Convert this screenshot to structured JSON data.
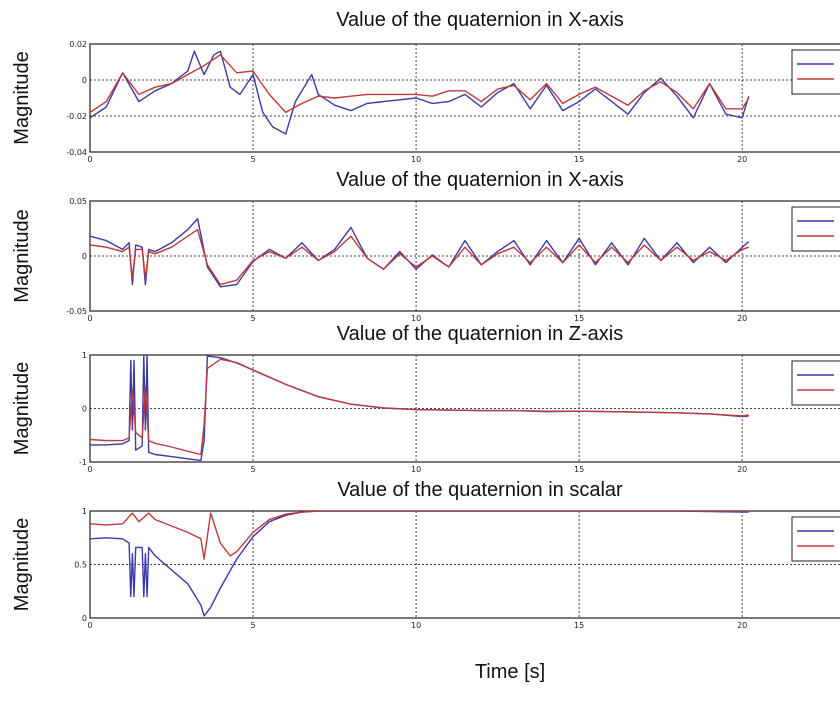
{
  "figure": {
    "xlabel": "Time [s]"
  },
  "chart_data": [
    {
      "type": "line",
      "title": "Value of the quaternion in X-axis",
      "ylabel": "Magnitude",
      "xlim": [
        0,
        23
      ],
      "ylim": [
        -0.04,
        0.02
      ],
      "x_ticks": [
        0,
        5,
        10,
        15,
        20
      ],
      "y_ticks": [
        -0.04,
        -0.02,
        0,
        0.02
      ],
      "y_tick_labels": [
        "-0.04",
        "-0.02",
        "0",
        "0.02"
      ],
      "grid": true,
      "legend": "right",
      "series": [
        {
          "color": "#3a3aa8",
          "x": [
            0,
            0.5,
            1,
            1.5,
            2,
            2.5,
            3,
            3.2,
            3.5,
            3.8,
            4,
            4.3,
            4.6,
            5,
            5.3,
            5.6,
            6,
            6.3,
            6.8,
            7,
            7.5,
            8,
            8.5,
            9,
            9.5,
            10,
            10.5,
            11,
            11.5,
            12,
            12.5,
            13,
            13.5,
            14,
            14.5,
            15,
            15.5,
            16,
            16.5,
            17,
            17.5,
            18,
            18.5,
            19,
            19.5,
            20,
            20.2
          ],
          "y": [
            -0.021,
            -0.015,
            0.004,
            -0.012,
            -0.006,
            -0.002,
            0.005,
            0.016,
            0.003,
            0.014,
            0.016,
            -0.004,
            -0.008,
            0.003,
            -0.018,
            -0.026,
            -0.03,
            -0.012,
            0.003,
            -0.008,
            -0.014,
            -0.017,
            -0.013,
            -0.012,
            -0.011,
            -0.01,
            -0.013,
            -0.012,
            -0.008,
            -0.015,
            -0.007,
            -0.002,
            -0.016,
            -0.003,
            -0.017,
            -0.012,
            -0.005,
            -0.012,
            -0.019,
            -0.007,
            0.001,
            -0.009,
            -0.021,
            -0.002,
            -0.019,
            -0.021,
            -0.009
          ]
        },
        {
          "color": "#c0393b",
          "x": [
            0,
            0.5,
            1,
            1.5,
            2,
            2.5,
            3,
            3.5,
            4,
            4.5,
            5,
            5.5,
            6,
            6.5,
            7,
            7.5,
            8,
            8.5,
            9,
            9.5,
            10,
            10.5,
            11,
            11.5,
            12,
            12.5,
            13,
            13.5,
            14,
            14.5,
            15,
            15.5,
            16,
            16.5,
            17,
            17.5,
            18,
            18.5,
            19,
            19.5,
            20,
            20.2
          ],
          "y": [
            -0.018,
            -0.012,
            0.004,
            -0.008,
            -0.004,
            -0.002,
            0.003,
            0.008,
            0.014,
            0.004,
            0.005,
            -0.008,
            -0.018,
            -0.013,
            -0.009,
            -0.01,
            -0.009,
            -0.008,
            -0.008,
            -0.008,
            -0.008,
            -0.009,
            -0.006,
            -0.006,
            -0.012,
            -0.005,
            -0.003,
            -0.011,
            -0.002,
            -0.013,
            -0.008,
            -0.004,
            -0.009,
            -0.014,
            -0.006,
            -0.001,
            -0.007,
            -0.016,
            -0.002,
            -0.016,
            -0.016,
            -0.01
          ]
        }
      ]
    },
    {
      "type": "line",
      "title": "Value of the quaternion in X-axis",
      "ylabel": "Magnitude",
      "xlim": [
        0,
        23
      ],
      "ylim": [
        -0.05,
        0.05
      ],
      "x_ticks": [
        0,
        5,
        10,
        15,
        20
      ],
      "y_ticks": [
        -0.05,
        0,
        0.05
      ],
      "y_tick_labels": [
        "-0.05",
        "0",
        "0.05"
      ],
      "grid": true,
      "legend": "right",
      "series": [
        {
          "color": "#3a3aa8",
          "x": [
            0,
            0.5,
            1,
            1.2,
            1.3,
            1.4,
            1.6,
            1.7,
            1.8,
            2,
            2.5,
            3,
            3.3,
            3.6,
            4,
            4.5,
            5,
            5.5,
            6,
            6.5,
            7,
            7.5,
            8,
            8.5,
            9,
            9.5,
            10,
            10.5,
            11,
            11.5,
            12,
            12.5,
            13,
            13.5,
            14,
            14.5,
            15,
            15.5,
            16,
            16.5,
            17,
            17.5,
            18,
            18.5,
            19,
            19.5,
            20,
            20.2
          ],
          "y": [
            0.018,
            0.014,
            0.006,
            0.012,
            -0.026,
            0.01,
            0.008,
            -0.026,
            0.006,
            0.004,
            0.012,
            0.024,
            0.034,
            -0.01,
            -0.028,
            -0.026,
            -0.005,
            0.006,
            -0.002,
            0.012,
            -0.004,
            0.006,
            0.026,
            -0.002,
            -0.012,
            0.004,
            -0.012,
            0.001,
            -0.01,
            0.014,
            -0.008,
            0.004,
            0.014,
            -0.008,
            0.014,
            -0.006,
            0.016,
            -0.008,
            0.012,
            -0.008,
            0.016,
            -0.004,
            0.012,
            -0.006,
            0.008,
            -0.006,
            0.008,
            0.013
          ]
        },
        {
          "color": "#c0393b",
          "x": [
            0,
            0.5,
            1,
            1.2,
            1.3,
            1.4,
            1.6,
            1.7,
            1.8,
            2,
            2.5,
            3,
            3.3,
            3.6,
            4,
            4.5,
            5,
            5.5,
            6,
            6.5,
            7,
            7.5,
            8,
            8.5,
            9,
            9.5,
            10,
            10.5,
            11,
            11.5,
            12,
            12.5,
            13,
            13.5,
            14,
            14.5,
            15,
            15.5,
            16,
            16.5,
            17,
            17.5,
            18,
            18.5,
            19,
            19.5,
            20,
            20.2
          ],
          "y": [
            0.01,
            0.008,
            0.004,
            0.008,
            -0.02,
            0.006,
            0.006,
            -0.02,
            0.004,
            0.002,
            0.008,
            0.018,
            0.024,
            -0.008,
            -0.026,
            -0.022,
            -0.004,
            0.004,
            -0.002,
            0.008,
            -0.004,
            0.004,
            0.018,
            -0.002,
            -0.012,
            0.002,
            -0.01,
            0,
            -0.01,
            0.008,
            -0.008,
            0.002,
            0.008,
            -0.006,
            0.008,
            -0.006,
            0.01,
            -0.006,
            0.008,
            -0.006,
            0.01,
            -0.004,
            0.008,
            -0.004,
            0.004,
            -0.004,
            0.006,
            0.008
          ]
        }
      ]
    },
    {
      "type": "line",
      "title": "Value of the quaternion in Z-axis",
      "ylabel": "Magnitude",
      "xlim": [
        0,
        23
      ],
      "ylim": [
        -1,
        1
      ],
      "x_ticks": [
        0,
        5,
        10,
        15,
        20
      ],
      "y_ticks": [
        -1,
        0,
        1
      ],
      "y_tick_labels": [
        "-1",
        "0",
        "1"
      ],
      "grid": true,
      "legend": "right",
      "series": [
        {
          "color": "#3a3aa8",
          "x": [
            0,
            0.5,
            1,
            1.2,
            1.25,
            1.3,
            1.35,
            1.4,
            1.6,
            1.65,
            1.7,
            1.75,
            1.8,
            2,
            2.5,
            3,
            3.4,
            3.5,
            3.6,
            4,
            4.5,
            5,
            6,
            7,
            8,
            9,
            10,
            11,
            12,
            13,
            14,
            15,
            16,
            17,
            18,
            19,
            20,
            20.2
          ],
          "y": [
            -0.68,
            -0.68,
            -0.66,
            -0.6,
            0.9,
            -0.4,
            0.9,
            -0.78,
            -0.7,
            1,
            -0.4,
            1,
            -0.82,
            -0.86,
            -0.9,
            -0.94,
            -0.97,
            -0.6,
            0.98,
            0.95,
            0.85,
            0.72,
            0.45,
            0.22,
            0.08,
            0.01,
            -0.02,
            -0.03,
            -0.04,
            -0.04,
            -0.06,
            -0.05,
            -0.06,
            -0.07,
            -0.08,
            -0.1,
            -0.15,
            -0.14
          ]
        },
        {
          "color": "#c0393b",
          "x": [
            0,
            0.5,
            1,
            1.2,
            1.3,
            1.4,
            1.6,
            1.7,
            1.8,
            2,
            2.5,
            3,
            3.4,
            3.5,
            3.6,
            4,
            4.5,
            5,
            6,
            7,
            8,
            9,
            10,
            11,
            12,
            13,
            14,
            15,
            16,
            17,
            18,
            19,
            20,
            20.2
          ],
          "y": [
            -0.58,
            -0.6,
            -0.6,
            -0.55,
            0.35,
            -0.45,
            -0.55,
            0.4,
            -0.6,
            -0.65,
            -0.72,
            -0.8,
            -0.86,
            -0.3,
            0.75,
            0.92,
            0.86,
            0.72,
            0.45,
            0.22,
            0.08,
            0.01,
            -0.02,
            -0.03,
            -0.04,
            -0.04,
            -0.05,
            -0.05,
            -0.06,
            -0.07,
            -0.08,
            -0.1,
            -0.14,
            -0.12
          ]
        }
      ]
    },
    {
      "type": "line",
      "title": "Value of the quaternion in scalar",
      "ylabel": "Magnitude",
      "xlim": [
        0,
        23
      ],
      "ylim": [
        0,
        1
      ],
      "x_ticks": [
        0,
        5,
        10,
        15,
        20
      ],
      "y_ticks": [
        0,
        0.5,
        1
      ],
      "y_tick_labels": [
        "0",
        "0.5",
        "1"
      ],
      "grid": true,
      "legend": "right",
      "series": [
        {
          "color": "#3a3aa8",
          "x": [
            0,
            0.5,
            1,
            1.2,
            1.25,
            1.3,
            1.35,
            1.4,
            1.6,
            1.65,
            1.7,
            1.75,
            1.8,
            2,
            2.5,
            3,
            3.4,
            3.5,
            3.7,
            4,
            4.5,
            5,
            5.5,
            6,
            6.5,
            7,
            8,
            10,
            12,
            15,
            18,
            20,
            20.2
          ],
          "y": [
            0.74,
            0.75,
            0.74,
            0.7,
            0.2,
            0.6,
            0.2,
            0.66,
            0.66,
            0.2,
            0.6,
            0.2,
            0.66,
            0.58,
            0.45,
            0.32,
            0.12,
            0.02,
            0.1,
            0.28,
            0.55,
            0.76,
            0.9,
            0.96,
            0.99,
            1,
            1,
            1,
            1,
            1,
            1,
            0.99,
            0.99
          ]
        },
        {
          "color": "#c0393b",
          "x": [
            0,
            0.5,
            1,
            1.3,
            1.5,
            1.8,
            2,
            2.5,
            3,
            3.4,
            3.5,
            3.7,
            4,
            4.3,
            4.5,
            5,
            5.5,
            6,
            6.5,
            7,
            8,
            10,
            12,
            15,
            18,
            20,
            20.2
          ],
          "y": [
            0.88,
            0.87,
            0.88,
            0.98,
            0.9,
            0.98,
            0.92,
            0.86,
            0.8,
            0.74,
            0.55,
            0.98,
            0.7,
            0.58,
            0.62,
            0.8,
            0.92,
            0.97,
            0.99,
            1,
            1,
            1,
            1,
            1,
            1,
            1,
            1
          ]
        }
      ]
    }
  ]
}
